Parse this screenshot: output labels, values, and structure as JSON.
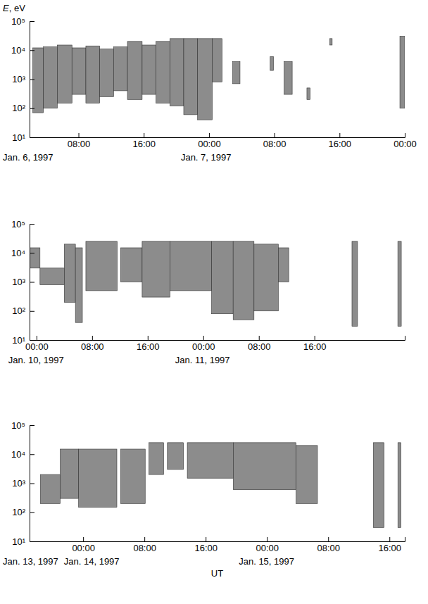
{
  "chart_data": [
    {
      "type": "spectrogram",
      "y_label": "E, eV",
      "log": "y",
      "color": "#8c8c8c",
      "ylim": [
        10,
        100000
      ],
      "yticks": [
        {
          "value": 10,
          "label": "10¹"
        },
        {
          "value": 100,
          "label": "10²"
        },
        {
          "value": 1000,
          "label": "10³"
        },
        {
          "value": 10000,
          "label": "10⁴"
        },
        {
          "value": 100000,
          "label": "10⁵"
        }
      ],
      "xlim": [
        2,
        48
      ],
      "xticks": [
        {
          "value": 8,
          "label": "08:00"
        },
        {
          "value": 16,
          "label": "16:00"
        },
        {
          "value": 24,
          "label": "00:00"
        },
        {
          "value": 32,
          "label": "08:00"
        },
        {
          "value": 40,
          "label": "16:00"
        },
        {
          "value": 48,
          "label": "00:00"
        }
      ],
      "date_labels": [
        {
          "x": 0,
          "label": "Jan. 6, 1997"
        },
        {
          "x": 24,
          "label": "Jan. 7, 1997"
        }
      ],
      "start": [
        2.4,
        3.7,
        5.4,
        7.2,
        8.9,
        10.6,
        12.3,
        14.0,
        15.8,
        17.5,
        19.2,
        20.9,
        22.6,
        24.4,
        26.9,
        31.5,
        33.2,
        36.0,
        38.8,
        47.4
      ],
      "end": [
        3.7,
        5.4,
        7.2,
        8.9,
        10.6,
        12.3,
        14.0,
        15.8,
        17.5,
        19.2,
        20.9,
        22.6,
        24.4,
        25.6,
        27.8,
        31.9,
        34.2,
        36.4,
        39.1,
        48
      ],
      "low": [
        70,
        100,
        150,
        300,
        150,
        250,
        400,
        200,
        300,
        150,
        120,
        60,
        40,
        800,
        700,
        2000,
        300,
        200,
        15000,
        100
      ],
      "high": [
        12000,
        13000,
        15000,
        12000,
        14000,
        11000,
        13000,
        20000,
        15000,
        20000,
        25000,
        25000,
        25000,
        25000,
        4000,
        6000,
        4000,
        500,
        25000,
        30000
      ]
    },
    {
      "type": "spectrogram",
      "log": "y",
      "color": "#8c8c8c",
      "ylim": [
        10,
        100000
      ],
      "yticks": [
        {
          "value": 10,
          "label": "10¹"
        },
        {
          "value": 100,
          "label": "10²"
        },
        {
          "value": 1000,
          "label": "10³"
        },
        {
          "value": 10000,
          "label": "10⁴"
        },
        {
          "value": 100000,
          "label": "10⁵"
        }
      ],
      "xlim": [
        -1,
        53
      ],
      "xticks": [
        {
          "value": 0,
          "label": "00:00"
        },
        {
          "value": 8,
          "label": "08:00"
        },
        {
          "value": 16,
          "label": "16:00"
        },
        {
          "value": 24,
          "label": "00:00"
        },
        {
          "value": 32,
          "label": "08:00"
        },
        {
          "value": 40,
          "label": "16:00"
        }
      ],
      "date_labels": [
        {
          "x": 0,
          "label": "Jan. 10, 1997"
        },
        {
          "x": 24,
          "label": "Jan. 11, 1997"
        }
      ],
      "start": [
        -1,
        0.5,
        4.0,
        5.6,
        7.1,
        12.1,
        15.2,
        19.2,
        25.2,
        28.3,
        31.3,
        34.8,
        45.4,
        52.0
      ],
      "end": [
        0.5,
        4.0,
        5.6,
        6.6,
        11.6,
        15.2,
        19.2,
        25.2,
        28.3,
        31.3,
        34.8,
        36.3,
        46.2,
        52.5
      ],
      "low": [
        3000,
        800,
        200,
        40,
        500,
        1000,
        300,
        500,
        80,
        50,
        100,
        1000,
        30,
        30
      ],
      "high": [
        15000,
        3000,
        20000,
        15000,
        25000,
        15000,
        25000,
        25000,
        25000,
        25000,
        20000,
        15000,
        25000,
        25000
      ]
    },
    {
      "type": "spectrogram",
      "log": "y",
      "color": "#8c8c8c",
      "x_label": "UT",
      "ylim": [
        10,
        100000
      ],
      "yticks": [
        {
          "value": 10,
          "label": "10¹"
        },
        {
          "value": 100,
          "label": "10²"
        },
        {
          "value": 1000,
          "label": "10³"
        },
        {
          "value": 10000,
          "label": "10⁴"
        },
        {
          "value": 100000,
          "label": "10⁵"
        }
      ],
      "xlim": [
        -7,
        42
      ],
      "xticks": [
        {
          "value": 0,
          "label": "00:00"
        },
        {
          "value": 8,
          "label": "08:00"
        },
        {
          "value": 16,
          "label": "16:00"
        },
        {
          "value": 24,
          "label": "00:00"
        },
        {
          "value": 32,
          "label": "08:00"
        },
        {
          "value": 40,
          "label": "16:00"
        }
      ],
      "date_labels": [
        {
          "x": -7,
          "label": "Jan. 13, 1997"
        },
        {
          "x": 0,
          "label": "Jan. 14, 1997"
        },
        {
          "x": 24,
          "label": "Jan. 15, 1997"
        }
      ],
      "start": [
        -5.6,
        -3,
        -0.6,
        4.9,
        8.6,
        11,
        13.6,
        19.6,
        27.8,
        37.9,
        41.1
      ],
      "end": [
        -3,
        -0.6,
        4.4,
        8.1,
        10.5,
        13.1,
        19.6,
        27.8,
        30.6,
        39.3,
        41.5
      ],
      "low": [
        200,
        300,
        150,
        200,
        2000,
        3000,
        1500,
        600,
        200,
        30,
        30
      ],
      "high": [
        2000,
        15000,
        15000,
        15000,
        25000,
        25000,
        25000,
        25000,
        20000,
        25000,
        25000
      ]
    }
  ]
}
